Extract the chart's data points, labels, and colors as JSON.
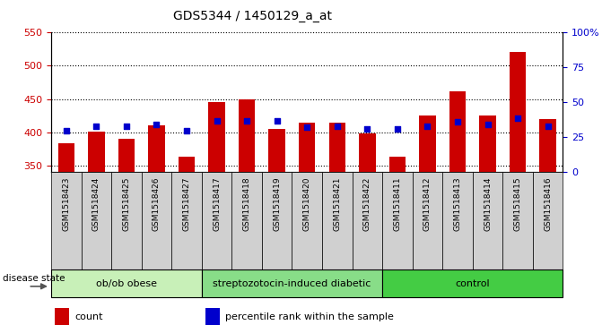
{
  "title": "GDS5344 / 1450129_a_at",
  "samples": [
    "GSM1518423",
    "GSM1518424",
    "GSM1518425",
    "GSM1518426",
    "GSM1518427",
    "GSM1518417",
    "GSM1518418",
    "GSM1518419",
    "GSM1518420",
    "GSM1518421",
    "GSM1518422",
    "GSM1518411",
    "GSM1518412",
    "GSM1518413",
    "GSM1518414",
    "GSM1518415",
    "GSM1518416"
  ],
  "counts": [
    384,
    401,
    390,
    410,
    363,
    445,
    449,
    405,
    414,
    415,
    398,
    363,
    425,
    462,
    425,
    521,
    420
  ],
  "percentile_ranks": [
    30,
    33,
    33,
    34,
    30,
    37,
    37,
    37,
    32,
    33,
    31,
    31,
    33,
    36,
    34,
    39,
    33
  ],
  "groups": [
    {
      "label": "ob/ob obese",
      "start": 0,
      "end": 5,
      "color": "#c8f0b8"
    },
    {
      "label": "streptozotocin-induced diabetic",
      "start": 5,
      "end": 11,
      "color": "#88dd88"
    },
    {
      "label": "control",
      "start": 11,
      "end": 17,
      "color": "#44cc44"
    }
  ],
  "ylim_left": [
    340,
    550
  ],
  "ylim_right": [
    0,
    100
  ],
  "yticks_left": [
    350,
    400,
    450,
    500,
    550
  ],
  "yticks_right": [
    0,
    25,
    50,
    75,
    100
  ],
  "bar_color": "#cc0000",
  "dot_color": "#0000cc",
  "bar_width": 0.55,
  "bar_bottom": 340,
  "plot_bg": "#ffffff",
  "tick_bg": "#d0d0d0",
  "grid_color": "#000000",
  "disease_state_label": "disease state",
  "legend_items": [
    {
      "label": "count",
      "color": "#cc0000"
    },
    {
      "label": "percentile rank within the sample",
      "color": "#0000cc"
    }
  ]
}
